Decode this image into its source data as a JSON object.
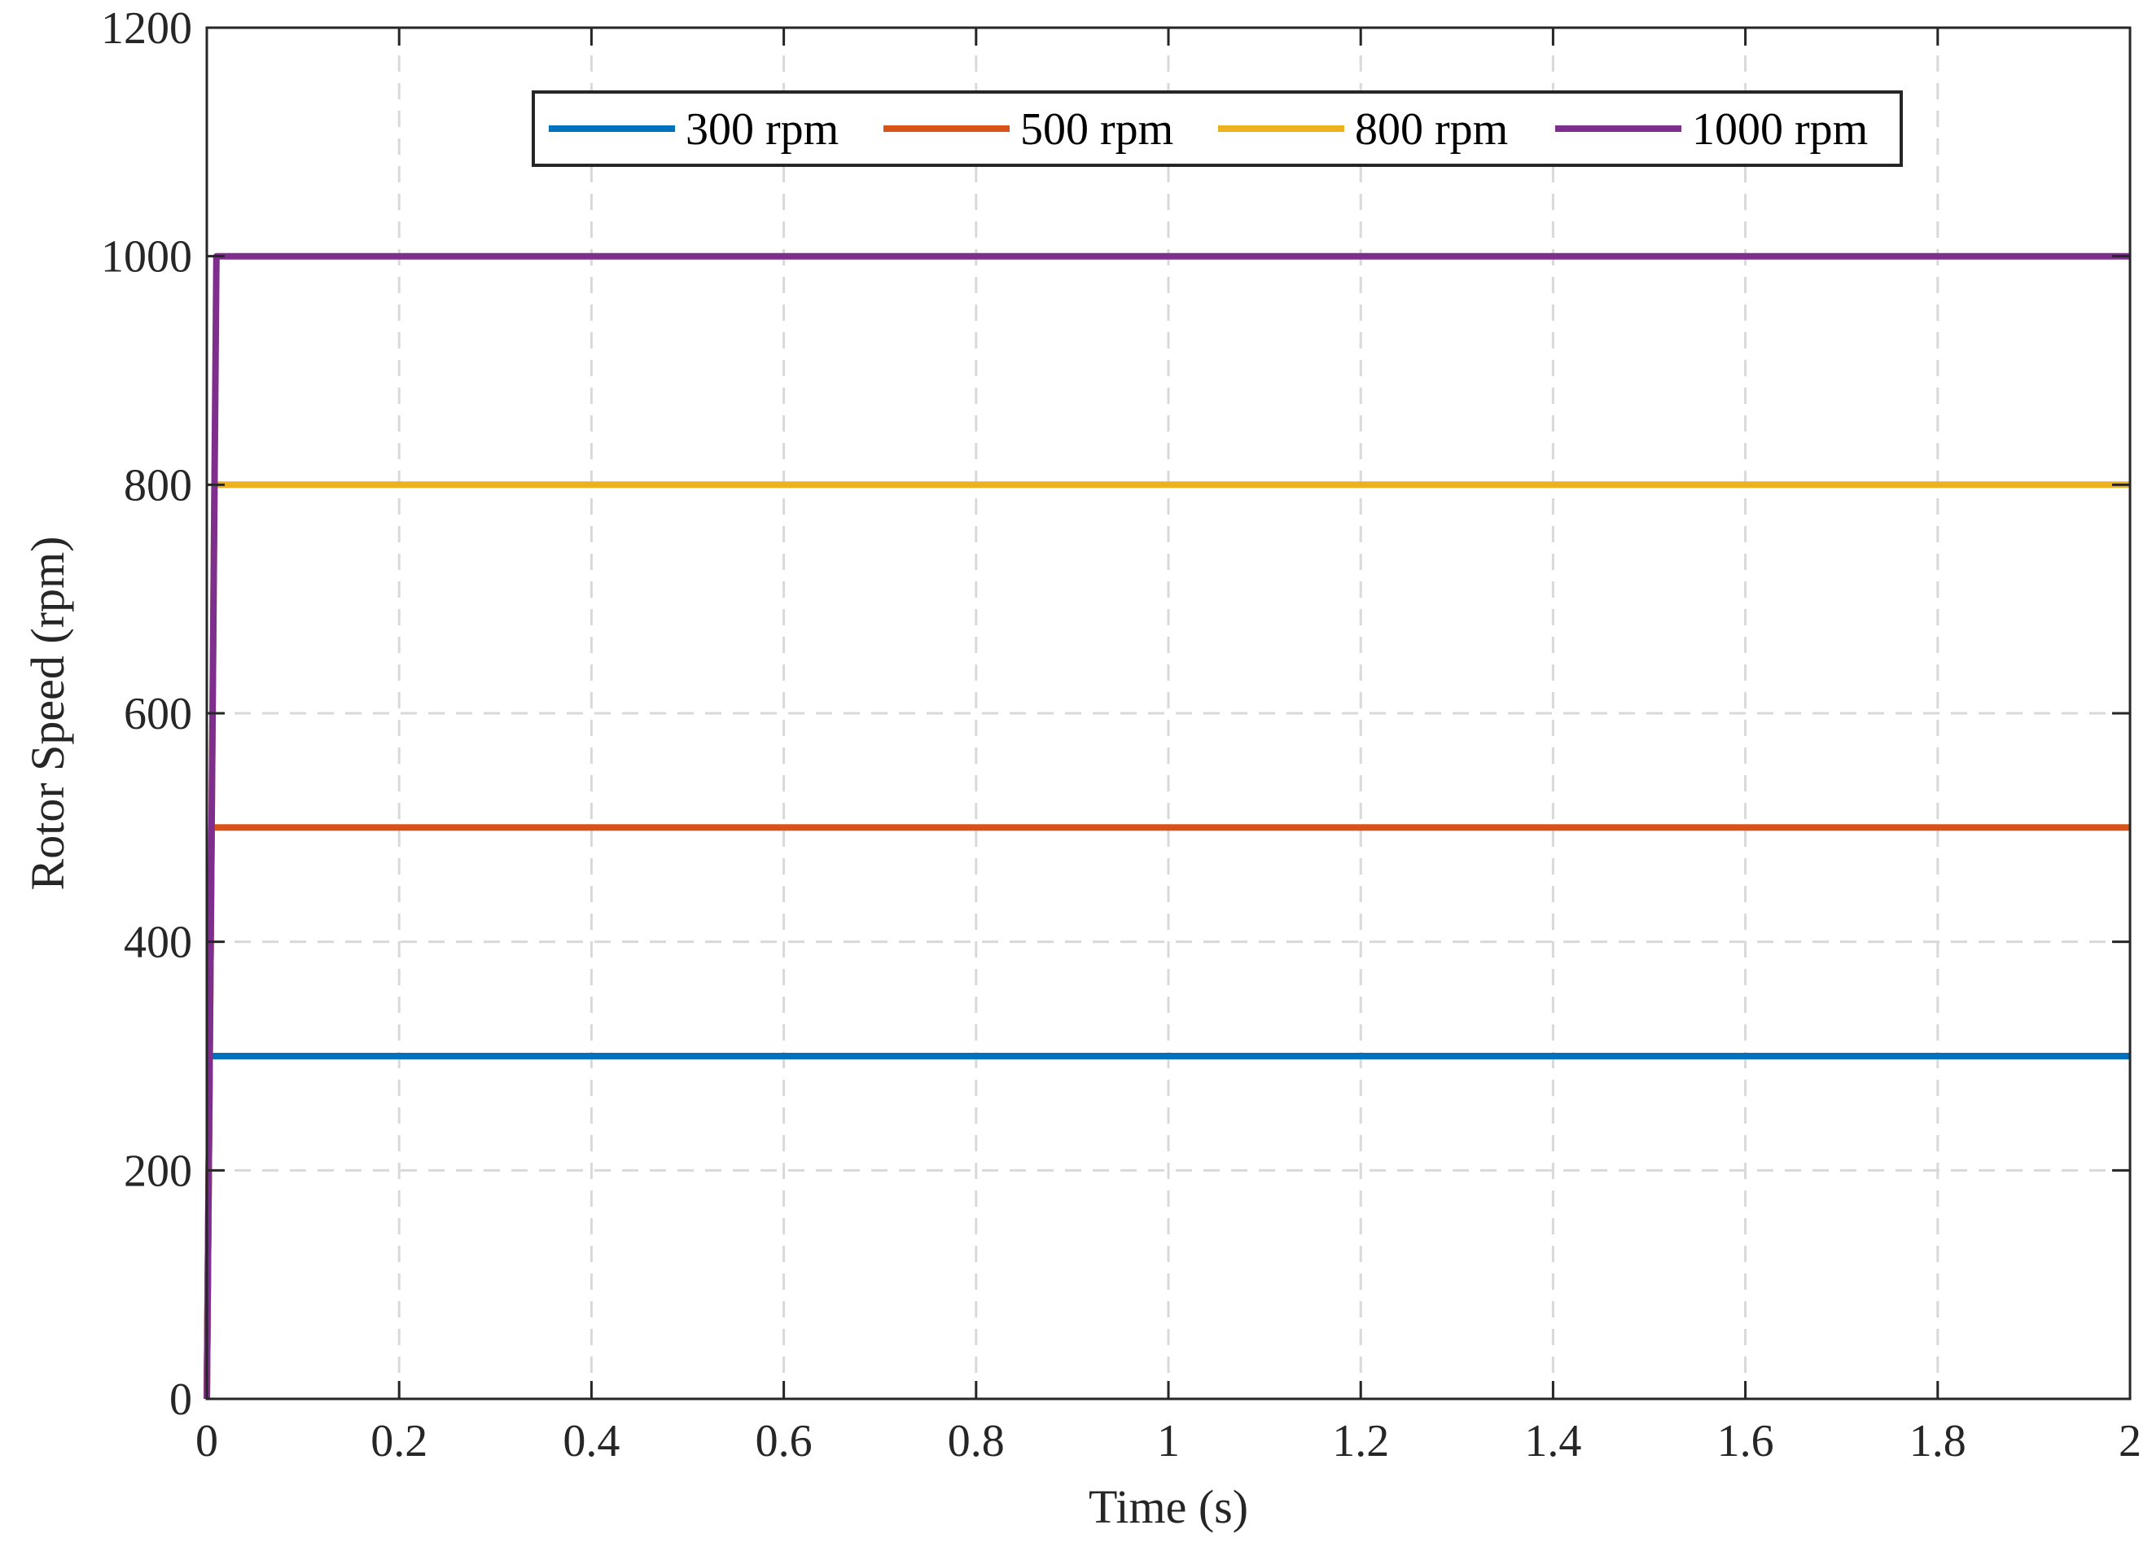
{
  "chart_data": {
    "type": "line",
    "title": "",
    "xlabel": "Time (s)",
    "ylabel": "Rotor Speed (rpm)",
    "xlim": [
      0,
      2
    ],
    "ylim": [
      0,
      1200
    ],
    "xticks": [
      0,
      0.2,
      0.4,
      0.6,
      0.8,
      1,
      1.2,
      1.4,
      1.6,
      1.8,
      2
    ],
    "xtick_labels": [
      "0",
      "0.2",
      "0.4",
      "0.6",
      "0.8",
      "1",
      "1.2",
      "1.4",
      "1.6",
      "1.8",
      "2"
    ],
    "yticks": [
      0,
      200,
      400,
      600,
      800,
      1000,
      1200
    ],
    "ytick_labels": [
      "0",
      "200",
      "400",
      "600",
      "800",
      "1000",
      "1200"
    ],
    "grid": true,
    "legend_position": "top",
    "legend_orientation": "horizontal",
    "series": [
      {
        "name": "300 rpm",
        "color": "#0072BD",
        "x": [
          0,
          0.003,
          2
        ],
        "y": [
          0,
          300,
          300
        ]
      },
      {
        "name": "500 rpm",
        "color": "#D95319",
        "x": [
          0,
          0.005,
          2
        ],
        "y": [
          0,
          500,
          500
        ]
      },
      {
        "name": "800 rpm",
        "color": "#EDB120",
        "x": [
          0,
          0.008,
          2
        ],
        "y": [
          0,
          800,
          800
        ]
      },
      {
        "name": "1000 rpm",
        "color": "#7E2F8E",
        "x": [
          0,
          0.01,
          2
        ],
        "y": [
          0,
          1000,
          1000
        ]
      }
    ]
  }
}
